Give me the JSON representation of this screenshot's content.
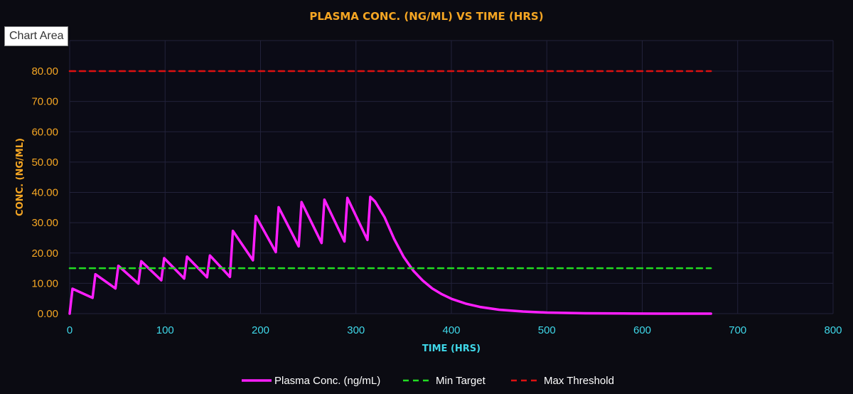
{
  "tooltip": {
    "text": "Chart Area"
  },
  "colors": {
    "background": "#0b0b12",
    "plot_background": "#0b0b16",
    "grid": "#22223a",
    "title": "#f5a623",
    "x_axis_text": "#3fd7e8",
    "y_axis_text": "#f5a623",
    "plasma": "#ff1eff",
    "min_target": "#22dd22",
    "max_threshold": "#dd1111",
    "legend_text": "#ffffff"
  },
  "chart_data": {
    "type": "line",
    "title": "PLASMA CONC. (NG/ML) VS TIME (HRS)",
    "xlabel": "TIME (HRS)",
    "ylabel": "CONC. (NG/ML)",
    "xlim": [
      0,
      800
    ],
    "ylim": [
      0,
      90
    ],
    "x_ticks": [
      0,
      100,
      200,
      300,
      400,
      500,
      600,
      700,
      800
    ],
    "x_tick_labels": [
      "0",
      "100",
      "200",
      "300",
      "400",
      "500",
      "600",
      "700",
      "800"
    ],
    "y_ticks": [
      0,
      10,
      20,
      30,
      40,
      50,
      60,
      70,
      80
    ],
    "y_tick_labels": [
      "0.00",
      "10.00",
      "20.00",
      "30.00",
      "40.00",
      "50.00",
      "60.00",
      "70.00",
      "80.00"
    ],
    "grid": true,
    "legend_position": "bottom",
    "series": [
      {
        "name": "Plasma Conc. (ng/mL)",
        "style": "solid",
        "color": "#ff1eff",
        "points": [
          [
            0,
            0
          ],
          [
            3,
            8.2
          ],
          [
            24,
            5.2
          ],
          [
            27,
            13.0
          ],
          [
            48,
            8.3
          ],
          [
            51,
            15.8
          ],
          [
            72,
            9.9
          ],
          [
            75,
            17.3
          ],
          [
            96,
            11.0
          ],
          [
            99,
            18.3
          ],
          [
            120,
            11.6
          ],
          [
            123,
            18.8
          ],
          [
            144,
            12.0
          ],
          [
            147,
            19.2
          ],
          [
            168,
            12.1
          ],
          [
            171,
            27.3
          ],
          [
            192,
            17.6
          ],
          [
            195,
            32.2
          ],
          [
            216,
            20.3
          ],
          [
            219,
            35.1
          ],
          [
            240,
            22.2
          ],
          [
            243,
            36.8
          ],
          [
            264,
            23.3
          ],
          [
            267,
            37.6
          ],
          [
            288,
            23.8
          ],
          [
            291,
            38.2
          ],
          [
            312,
            24.3
          ],
          [
            315,
            38.5
          ],
          [
            320,
            37.0
          ],
          [
            330,
            31.8
          ],
          [
            340,
            24.6
          ],
          [
            350,
            18.7
          ],
          [
            360,
            14.2
          ],
          [
            370,
            10.9
          ],
          [
            380,
            8.3
          ],
          [
            390,
            6.4
          ],
          [
            400,
            4.9
          ],
          [
            415,
            3.3
          ],
          [
            430,
            2.2
          ],
          [
            450,
            1.3
          ],
          [
            475,
            0.7
          ],
          [
            500,
            0.35
          ],
          [
            540,
            0.12
          ],
          [
            580,
            0.04
          ],
          [
            620,
            0.01
          ],
          [
            672,
            0.0
          ]
        ]
      },
      {
        "name": "Min Target",
        "style": "dashed",
        "color": "#22dd22",
        "points": [
          [
            0,
            15
          ],
          [
            672,
            15
          ]
        ]
      },
      {
        "name": "Max Threshold",
        "style": "dashed",
        "color": "#dd1111",
        "points": [
          [
            0,
            80
          ],
          [
            672,
            80
          ]
        ]
      }
    ]
  }
}
